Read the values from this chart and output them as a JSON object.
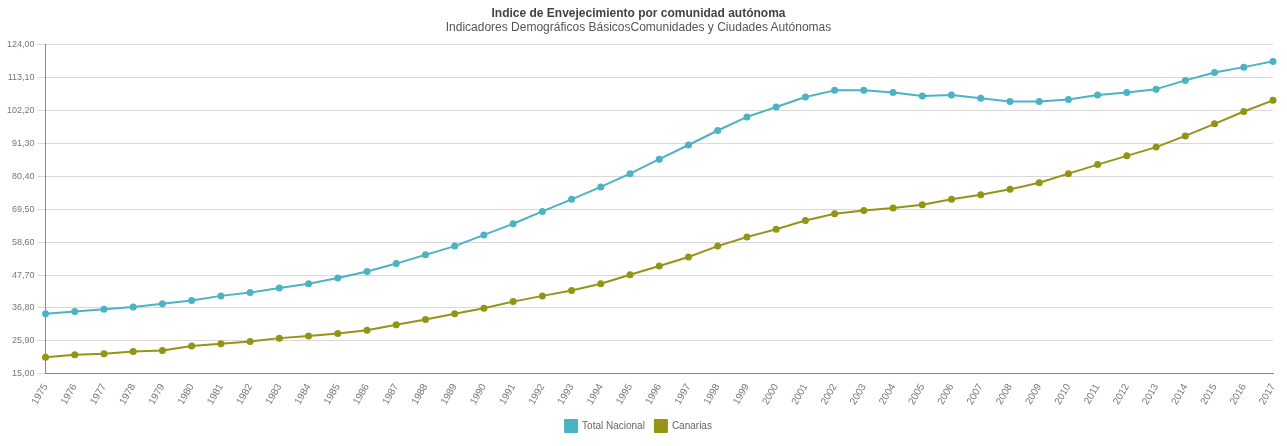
{
  "chart_data": {
    "type": "line",
    "title": "Indice de Envejecimiento por comunidad autónoma",
    "subtitle": "Indicadores Demográficos BásicosComunidades y Ciudades Autónomas",
    "categories": [
      "1975",
      "1976",
      "1977",
      "1978",
      "1979",
      "1980",
      "1981",
      "1982",
      "1983",
      "1984",
      "1985",
      "1986",
      "1987",
      "1988",
      "1989",
      "1990",
      "1991",
      "1992",
      "1993",
      "1994",
      "1995",
      "1996",
      "1997",
      "1998",
      "1999",
      "2000",
      "2001",
      "2002",
      "2003",
      "2004",
      "2005",
      "2006",
      "2007",
      "2008",
      "2009",
      "2010",
      "2011",
      "2012",
      "2013",
      "2014",
      "2015",
      "2016",
      "2017"
    ],
    "series": [
      {
        "name": "Total Nacional",
        "color": "#4bb3c4",
        "values": [
          34.9,
          35.6,
          36.4,
          37.1,
          38.2,
          39.3,
          40.8,
          41.9,
          43.4,
          44.8,
          46.7,
          48.9,
          51.5,
          54.4,
          57.3,
          61.0,
          64.7,
          68.8,
          72.8,
          76.9,
          81.3,
          86.1,
          90.8,
          95.6,
          100.1,
          103.4,
          106.7,
          108.9,
          108.9,
          108.2,
          107.0,
          107.4,
          106.3,
          105.2,
          105.2,
          105.9,
          107.4,
          108.2,
          109.3,
          112.2,
          114.8,
          116.6,
          118.5
        ]
      },
      {
        "name": "Canarias",
        "color": "#949415",
        "values": [
          20.5,
          21.3,
          21.6,
          22.4,
          22.7,
          24.2,
          24.9,
          25.7,
          26.8,
          27.5,
          28.3,
          29.4,
          31.2,
          33.0,
          34.9,
          36.7,
          38.9,
          40.8,
          42.6,
          44.8,
          47.8,
          50.7,
          53.7,
          57.3,
          60.3,
          62.9,
          65.8,
          68.0,
          69.1,
          69.9,
          71.0,
          72.8,
          74.3,
          76.1,
          78.3,
          81.3,
          84.3,
          87.2,
          90.1,
          93.8,
          97.8,
          101.9,
          105.6
        ]
      }
    ],
    "ylim": [
      15,
      124
    ],
    "yticks": [
      {
        "value": 15,
        "label": "15,00"
      },
      {
        "value": 25.9,
        "label": "25,90"
      },
      {
        "value": 36.8,
        "label": "36,80"
      },
      {
        "value": 47.7,
        "label": "47,70"
      },
      {
        "value": 58.6,
        "label": "58,60"
      },
      {
        "value": 69.5,
        "label": "69,50"
      },
      {
        "value": 80.4,
        "label": "80,40"
      },
      {
        "value": 91.3,
        "label": "91,30"
      },
      {
        "value": 102.2,
        "label": "102,20"
      },
      {
        "value": 113.1,
        "label": "113,10"
      },
      {
        "value": 124,
        "label": "124,00"
      }
    ],
    "grid": "y",
    "legend": "bottom",
    "marker": "circle",
    "line_style": "solid"
  }
}
